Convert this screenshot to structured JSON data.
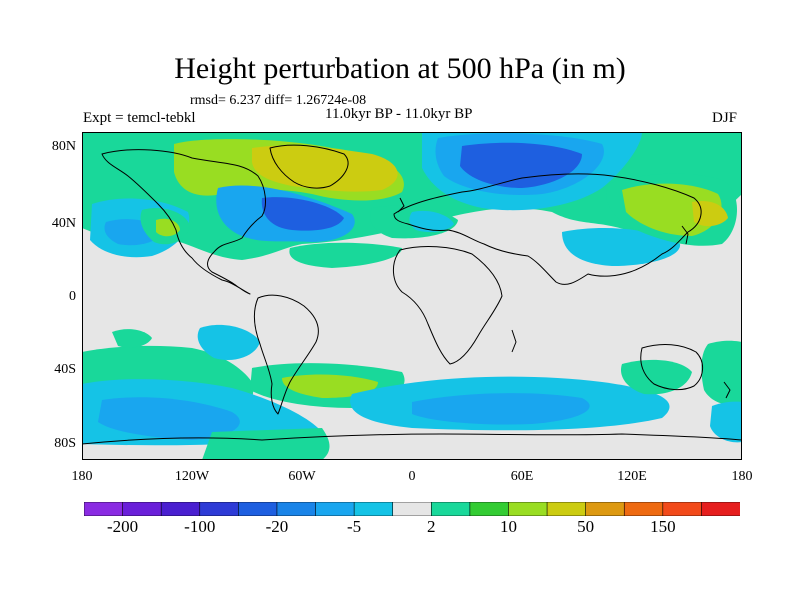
{
  "title": "Height perturbation at 500 hPa (in m)",
  "stats": "rmsd= 6.237 diff= 1.26724e-08",
  "experiment": "Expt = temcl-tebkl",
  "period": "11.0kyr BP - 11.0kyr BP",
  "season": "DJF",
  "lat_labels": [
    "80N",
    "40N",
    "0",
    "40S",
    "80S"
  ],
  "lon_labels": [
    "180",
    "120W",
    "60W",
    "0",
    "60E",
    "120E",
    "180"
  ],
  "colorbar": {
    "colors": [
      "#8a2be2",
      "#6a1fd9",
      "#4a1fd0",
      "#2e3bd6",
      "#1e5fe0",
      "#1a84e8",
      "#19a6ef",
      "#15c3e6",
      "#e6e6e6",
      "#19d89a",
      "#33cc33",
      "#99dd22",
      "#cccc11",
      "#dd9911",
      "#ee6a11",
      "#f24a1a",
      "#e61e1e"
    ],
    "labels": [
      "-200",
      "-100",
      "-20",
      "-5",
      "2",
      "10",
      "50",
      "150"
    ]
  },
  "colors": {
    "land_outline": "#000000",
    "neutral_fill": "#e6e6e6"
  }
}
